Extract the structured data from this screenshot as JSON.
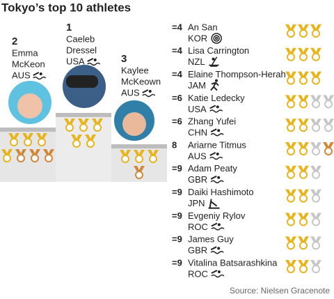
{
  "title": "Tokyo’s top 10 athletes",
  "podium": [
    {
      "rank": "2",
      "first_name": "Emma",
      "last_name": "McKeon",
      "country": "AUS",
      "gold": 4,
      "silver": 0,
      "bronze": 3
    },
    {
      "rank": "1",
      "first_name": "Caeleb",
      "last_name": "Dressel",
      "country": "USA",
      "gold": 5,
      "silver": 0,
      "bronze": 0
    },
    {
      "rank": "3",
      "first_name": "Kaylee",
      "last_name": "McKeown",
      "country": "AUS",
      "gold": 3,
      "silver": 0,
      "bronze": 1
    }
  ],
  "list": [
    {
      "rank": "=4",
      "name": "An San",
      "country": "KOR",
      "gold": 3,
      "silver": 0,
      "bronze": 0
    },
    {
      "rank": "=4",
      "name": "Lisa Carrington",
      "country": "NZL",
      "gold": 3,
      "silver": 0,
      "bronze": 0
    },
    {
      "rank": "=4",
      "name": "Elaine Thompson-Herah",
      "country": "JAM",
      "gold": 3,
      "silver": 0,
      "bronze": 0
    },
    {
      "rank": "=6",
      "name": "Katie Ledecky",
      "country": "USA",
      "gold": 2,
      "silver": 2,
      "bronze": 0
    },
    {
      "rank": "=6",
      "name": "Zhang Yufei",
      "country": "CHN",
      "gold": 2,
      "silver": 2,
      "bronze": 0
    },
    {
      "rank": "8",
      "name": "Ariarne Titmus",
      "country": "AUS",
      "gold": 2,
      "silver": 1,
      "bronze": 1
    },
    {
      "rank": "=9",
      "name": "Adam Peaty",
      "country": "GBR",
      "gold": 2,
      "silver": 1,
      "bronze": 0
    },
    {
      "rank": "=9",
      "name": "Daiki Hashimoto",
      "country": "JPN",
      "gold": 2,
      "silver": 1,
      "bronze": 0
    },
    {
      "rank": "=9",
      "name": "Evgeniy Rylov",
      "country": "ROC",
      "gold": 2,
      "silver": 1,
      "bronze": 0
    },
    {
      "rank": "=9",
      "name": "James Guy",
      "country": "GBR",
      "gold": 2,
      "silver": 1,
      "bronze": 0
    },
    {
      "rank": "=9",
      "name": "Vitalina Batsarashkina",
      "country": "ROC",
      "gold": 2,
      "silver": 1,
      "bronze": 0
    }
  ],
  "source": "Source: Nielsen Gracenote"
}
